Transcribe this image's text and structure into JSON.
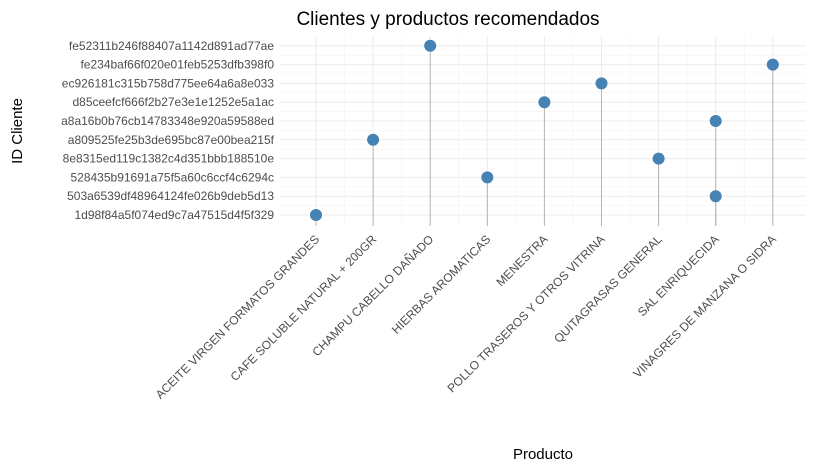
{
  "chart_data": {
    "type": "scatter",
    "style": "lollipop",
    "title": "Clientes y productos recomendados",
    "xlabel": "Producto",
    "ylabel": "ID Cliente",
    "grid": true,
    "legend": "none",
    "point_color": "#4682B4",
    "stem_color": "#B4B4B4",
    "categories_x": [
      "ACEITE VIRGEN FORMATOS GRANDES",
      "CAFE SOLUBLE NATURAL + 200GR",
      "CHAMPU CABELLO DAÑADO",
      "HIERBAS AROMATICAS",
      "MENESTRA",
      "POLLO TRASEROS Y OTROS VITRINA",
      "QUITAGRASAS GENERAL",
      "SAL ENRIQUECIDA",
      "VINAGRES DE MANZANA O SIDRA"
    ],
    "categories_y": [
      "1d98f84a5f074ed9c7a47515d4f5f329",
      "503a6539df48964124fe026b9deb5d13",
      "528435b91691a75f5a60c6ccf4c6294c",
      "8e8315ed119c1382c4d351bbb188510e",
      "a809525fe25b3de695bc87e00bea215f",
      "a8a16b0b76cb14783348e920a59588ed",
      "d85ceefcf666f2b27e3e1e1252e5a1ac",
      "ec926181c315b758d775ee64a6a8e033",
      "fe234baf66f020e01feb5253dfb398f0",
      "fe52311b246f88407a1142d891ad77ae"
    ],
    "points": [
      {
        "x": "ACEITE VIRGEN FORMATOS GRANDES",
        "y": "1d98f84a5f074ed9c7a47515d4f5f329"
      },
      {
        "x": "CAFE SOLUBLE NATURAL + 200GR",
        "y": "a809525fe25b3de695bc87e00bea215f"
      },
      {
        "x": "CHAMPU CABELLO DAÑADO",
        "y": "fe52311b246f88407a1142d891ad77ae"
      },
      {
        "x": "HIERBAS AROMATICAS",
        "y": "528435b91691a75f5a60c6ccf4c6294c"
      },
      {
        "x": "MENESTRA",
        "y": "d85ceefcf666f2b27e3e1e1252e5a1ac"
      },
      {
        "x": "POLLO TRASEROS Y OTROS VITRINA",
        "y": "ec926181c315b758d775ee64a6a8e033"
      },
      {
        "x": "QUITAGRASAS GENERAL",
        "y": "8e8315ed119c1382c4d351bbb188510e"
      },
      {
        "x": "SAL ENRIQUECIDA",
        "y": "a8a16b0b76cb14783348e920a59588ed"
      },
      {
        "x": "SAL ENRIQUECIDA",
        "y": "503a6539df48964124fe026b9deb5d13"
      },
      {
        "x": "VINAGRES DE MANZANA O SIDRA",
        "y": "fe234baf66f020e01feb5253dfb398f0"
      }
    ]
  }
}
